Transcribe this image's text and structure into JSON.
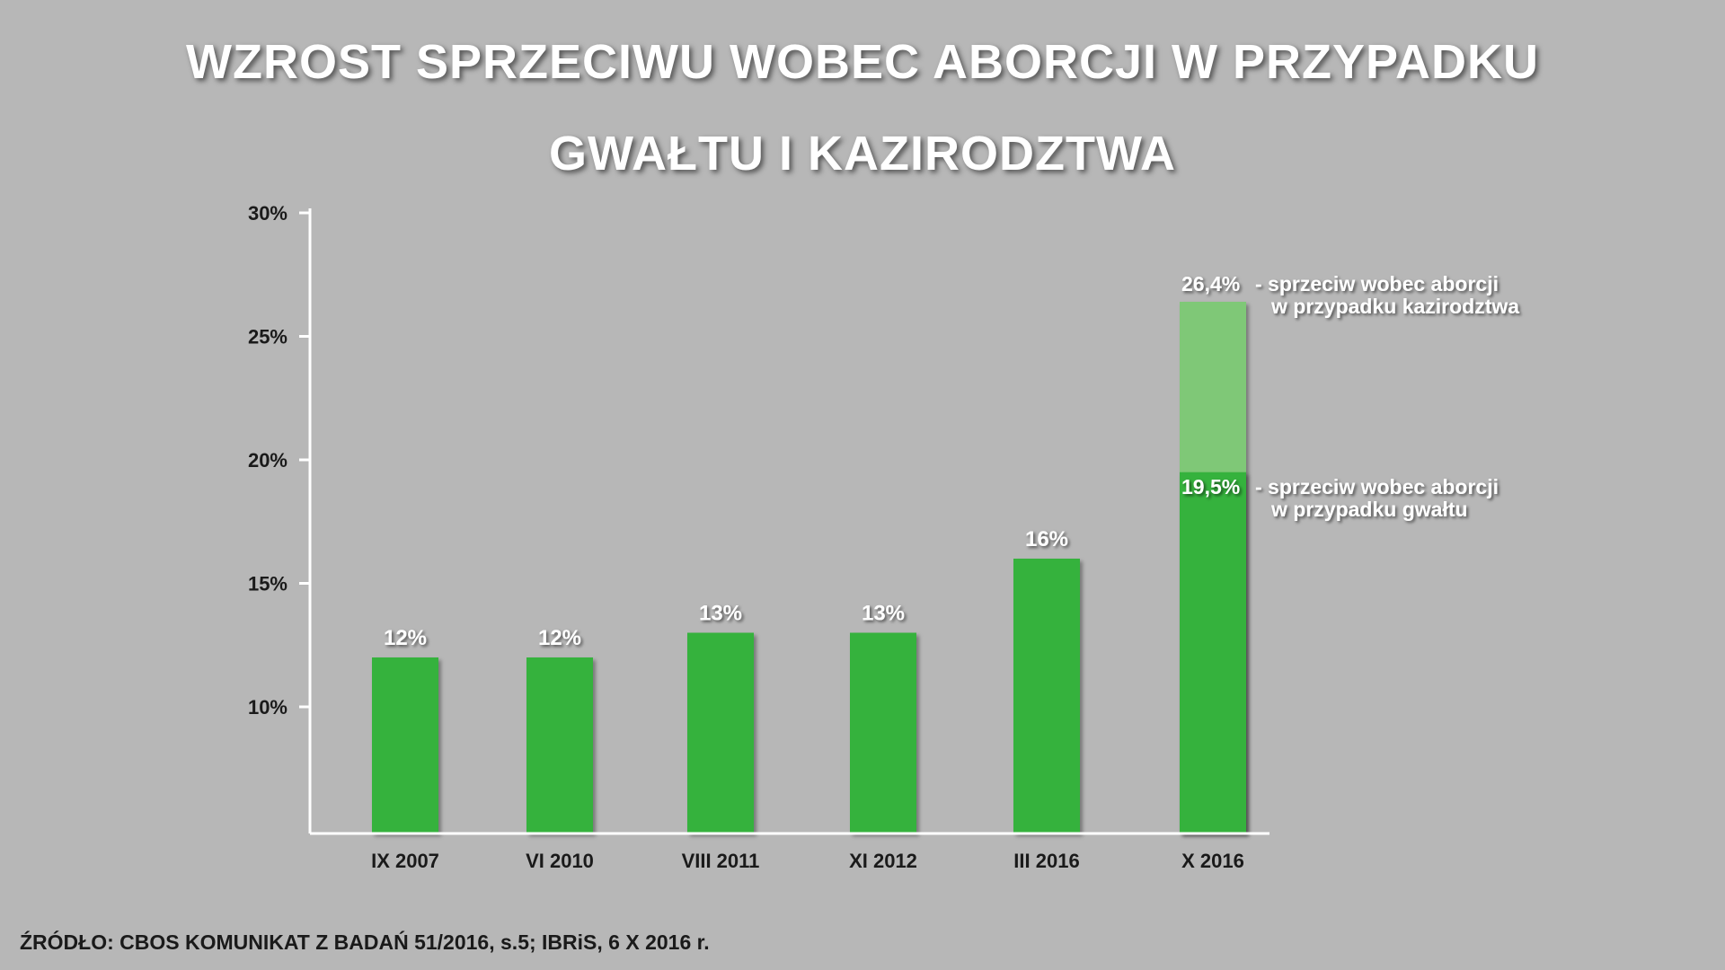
{
  "title_lines": [
    "WZROST SPRZECIWU WOBEC ABORCJI W PRZYPADKU",
    "GWAŁTU I KAZIRODZTWA"
  ],
  "source": "ŹRÓDŁO: CBOS KOMUNIKAT Z BADAŃ 51/2016, s.5; IBRiS, 6 X 2016 r.",
  "colors": {
    "background": "#b7b7b7",
    "bar": "#36b23e",
    "bar_light": "#7fc877",
    "text_dark": "#1a1a1a",
    "text_light": "#ffffff"
  },
  "chart_data": {
    "type": "bar",
    "title": "WZROST SPRZECIWU WOBEC ABORCJI W PRZYPADKU GWAŁTU I KAZIRODZTWA",
    "xlabel": "",
    "ylabel": "",
    "ylim": [
      5,
      30
    ],
    "yticks": [
      10,
      15,
      20,
      25,
      30
    ],
    "ytick_labels": [
      "10%",
      "15%",
      "20%",
      "25%",
      "30%"
    ],
    "grid": false,
    "categories": [
      "IX 2007",
      "VI 2010",
      "VIII 2011",
      "XI 2012",
      "III 2016",
      "X 2016"
    ],
    "values": [
      12,
      12,
      13,
      13,
      16,
      19.5
    ],
    "value_labels": [
      "12%",
      "12%",
      "13%",
      "13%",
      "16%",
      "19,5%"
    ],
    "stacked_extra": {
      "category": "X 2016",
      "total": 26.4,
      "label": "26,4%"
    },
    "annotations": [
      {
        "value_label": "26,4%",
        "lines": [
          "- sprzeciw wobec aborcji",
          "w przypadku kazirodztwa"
        ]
      },
      {
        "value_label": "19,5%",
        "lines": [
          "- sprzeciw wobec aborcji",
          "w przypadku gwałtu"
        ]
      }
    ]
  }
}
